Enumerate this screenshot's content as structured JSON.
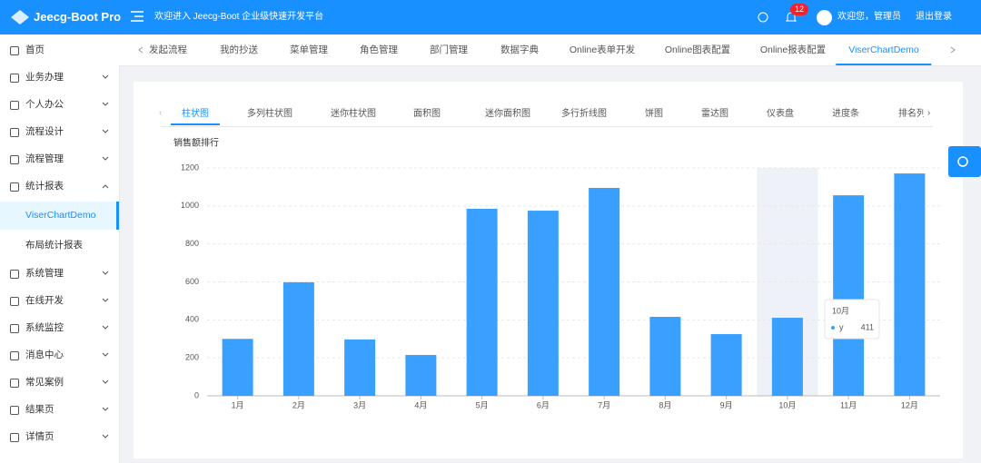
{
  "header": {
    "logo": "Jeecg-Boot Pro",
    "welcome": "欢迎进入 Jeecg-Boot 企业级快速开发平台",
    "notification_count": 12,
    "user": "欢迎您，管理员",
    "logout": "退出登录"
  },
  "sidebar": {
    "items": [
      {
        "label": "首页"
      },
      {
        "label": "业务办理",
        "expanded": false
      },
      {
        "label": "个人办公",
        "expanded": false
      },
      {
        "label": "流程设计",
        "expanded": false
      },
      {
        "label": "流程管理",
        "expanded": false
      },
      {
        "label": "统计报表",
        "expanded": true,
        "children": [
          "ViserChartDemo",
          "布局统计报表"
        ],
        "active_child": 0
      },
      {
        "label": "系统管理",
        "expanded": false
      },
      {
        "label": "在线开发",
        "expanded": false
      },
      {
        "label": "系统监控",
        "expanded": false
      },
      {
        "label": "消息中心",
        "expanded": false
      },
      {
        "label": "常见案例",
        "expanded": false
      },
      {
        "label": "结果页",
        "expanded": false
      },
      {
        "label": "详情页",
        "expanded": false
      }
    ]
  },
  "tabs": {
    "items": [
      "发起流程",
      "我的抄送",
      "菜单管理",
      "角色管理",
      "部门管理",
      "数据字典",
      "Online表单开发",
      "Online图表配置",
      "Online报表配置",
      "ViserChartDemo"
    ],
    "active": 9
  },
  "chart_tabs": {
    "items": [
      "柱状图",
      "多列柱状图",
      "迷你柱状图",
      "面积图",
      "迷你面积图",
      "多行折线图",
      "饼图",
      "雷达图",
      "仪表盘",
      "进度条",
      "排名列"
    ],
    "active": 0
  },
  "chart_data": {
    "type": "bar",
    "title": "销售额排行",
    "categories": [
      "1月",
      "2月",
      "3月",
      "4月",
      "5月",
      "6月",
      "7月",
      "8月",
      "9月",
      "10月",
      "11月",
      "12月"
    ],
    "values": [
      300,
      598,
      297,
      215,
      985,
      975,
      1095,
      416,
      325,
      411,
      1056,
      1171
    ],
    "series_name": "y",
    "color": "#3aa0ff",
    "ylim": [
      0,
      1200
    ],
    "yticks": [
      0,
      200,
      400,
      600,
      800,
      1000,
      1200
    ],
    "grid": true,
    "tooltip_index": 9
  }
}
